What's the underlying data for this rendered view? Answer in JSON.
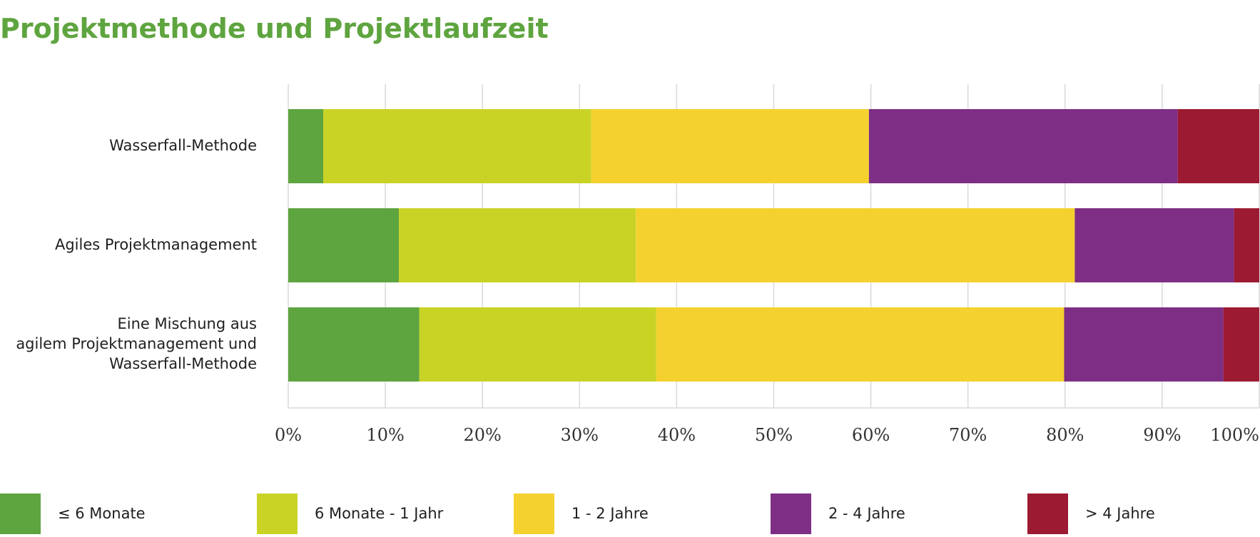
{
  "title": "Projektmethode und Projektlaufzeit",
  "chart_data": {
    "type": "bar",
    "orientation": "horizontal",
    "stacked": true,
    "title": "Projektmethode und Projektlaufzeit",
    "categories": [
      [
        "Wasserfall-Methode"
      ],
      [
        "Agiles Projektmanagement"
      ],
      [
        "Eine Mischung aus",
        "agilem Projektmanagement und",
        "Wasserfall-Methode"
      ]
    ],
    "series": [
      {
        "name": "≤ 6 Monate",
        "color": "#5ea43f",
        "values": [
          3.6,
          11.4,
          13.5
        ]
      },
      {
        "name": "6 Monate - 1 Jahr",
        "color": "#c9d326",
        "values": [
          27.6,
          24.4,
          24.4
        ]
      },
      {
        "name": "1 - 2 Jahre",
        "color": "#f4d12e",
        "values": [
          28.6,
          45.2,
          42.0
        ]
      },
      {
        "name": "2 - 4 Jahre",
        "color": "#7e2f85",
        "values": [
          31.8,
          16.4,
          16.4
        ]
      },
      {
        "name": "> 4 Jahre",
        "color": "#9c1a32",
        "values": [
          8.4,
          2.6,
          3.7
        ]
      }
    ],
    "xlim": [
      0,
      100
    ],
    "ticks": [
      "0%",
      "10%",
      "20%",
      "30%",
      "40%",
      "50%",
      "60%",
      "70%",
      "80%",
      "90%",
      "100%"
    ],
    "grid": true,
    "legend": "bottom"
  }
}
